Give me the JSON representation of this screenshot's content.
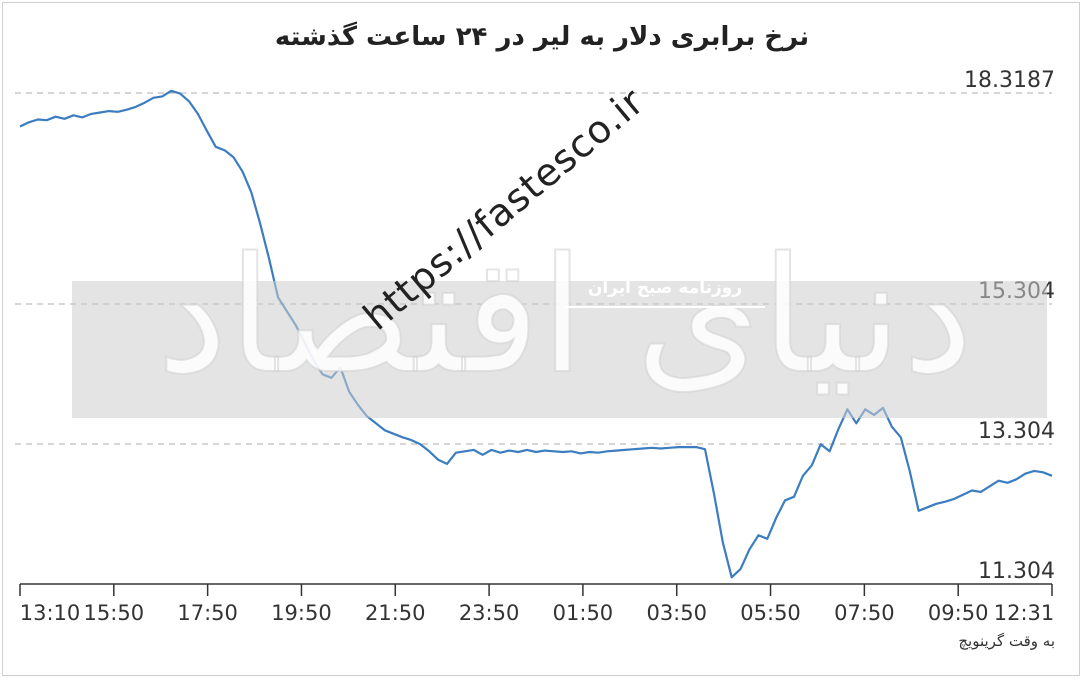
{
  "chart_data": {
    "type": "line",
    "title": "نرخ برابری دلار به لیر در ۲۴ ساعت گذشته",
    "xlabel": "به وقت گرینویچ",
    "ylabel": "",
    "x_ticks": [
      "13:10",
      "15:50",
      "17:50",
      "19:50",
      "21:50",
      "23:50",
      "01:50",
      "03:50",
      "05:50",
      "07:50",
      "09:50",
      "12:31"
    ],
    "y_ticks": [
      11.304,
      13.304,
      15.304,
      18.3187
    ],
    "y_tick_labels": [
      "11.304",
      "13.304",
      "15.304",
      "18.3187"
    ],
    "ylim": [
      11.304,
      18.3187
    ],
    "grid": "dashed horizontal lines at y ticks",
    "series": [
      {
        "color": "#3b7dc0",
        "points": [
          [
            0,
            17.84
          ],
          [
            1,
            17.9
          ],
          [
            2,
            17.94
          ],
          [
            3,
            17.93
          ],
          [
            4,
            17.98
          ],
          [
            5,
            17.95
          ],
          [
            6,
            18.0
          ],
          [
            7,
            17.97
          ],
          [
            8,
            18.02
          ],
          [
            9,
            18.04
          ],
          [
            10,
            18.06
          ],
          [
            11,
            18.05
          ],
          [
            12,
            18.08
          ],
          [
            13,
            18.12
          ],
          [
            14,
            18.18
          ],
          [
            15,
            18.25
          ],
          [
            16,
            18.27
          ],
          [
            17,
            18.35
          ],
          [
            18,
            18.31
          ],
          [
            19,
            18.2
          ],
          [
            20,
            18.02
          ],
          [
            21,
            17.78
          ],
          [
            22,
            17.55
          ],
          [
            23,
            17.5
          ],
          [
            24,
            17.4
          ],
          [
            25,
            17.2
          ],
          [
            26,
            16.9
          ],
          [
            27,
            16.45
          ],
          [
            28,
            15.95
          ],
          [
            29,
            15.4
          ],
          [
            30,
            15.2
          ],
          [
            31,
            15.0
          ],
          [
            32,
            14.75
          ],
          [
            33,
            14.5
          ],
          [
            34,
            14.3
          ],
          [
            35,
            14.25
          ],
          [
            36,
            14.4
          ],
          [
            37,
            14.05
          ],
          [
            38,
            13.86
          ],
          [
            39,
            13.7
          ],
          [
            40,
            13.6
          ],
          [
            41,
            13.5
          ],
          [
            42,
            13.45
          ],
          [
            43,
            13.4
          ],
          [
            44,
            13.36
          ],
          [
            45,
            13.3
          ],
          [
            46,
            13.2
          ],
          [
            47,
            13.08
          ],
          [
            48,
            13.02
          ],
          [
            49,
            13.18
          ],
          [
            50,
            13.2
          ],
          [
            51,
            13.22
          ],
          [
            52,
            13.15
          ],
          [
            53,
            13.22
          ],
          [
            54,
            13.18
          ],
          [
            55,
            13.21
          ],
          [
            56,
            13.19
          ],
          [
            57,
            13.22
          ],
          [
            58,
            13.19
          ],
          [
            59,
            13.21
          ],
          [
            60,
            13.2
          ],
          [
            61,
            13.19
          ],
          [
            62,
            13.2
          ],
          [
            63,
            13.17
          ],
          [
            64,
            13.19
          ],
          [
            65,
            13.18
          ],
          [
            66,
            13.2
          ],
          [
            67,
            13.21
          ],
          [
            68,
            13.22
          ],
          [
            69,
            13.23
          ],
          [
            70,
            13.24
          ],
          [
            71,
            13.25
          ],
          [
            72,
            13.24
          ],
          [
            73,
            13.25
          ],
          [
            74,
            13.26
          ],
          [
            75,
            13.26
          ],
          [
            76,
            13.26
          ],
          [
            77,
            13.23
          ],
          [
            78,
            12.6
          ],
          [
            79,
            11.9
          ],
          [
            80,
            11.4
          ],
          [
            81,
            11.52
          ],
          [
            82,
            11.8
          ],
          [
            83,
            12.0
          ],
          [
            84,
            11.95
          ],
          [
            85,
            12.25
          ],
          [
            86,
            12.5
          ],
          [
            87,
            12.55
          ],
          [
            88,
            12.85
          ],
          [
            89,
            13.0
          ],
          [
            90,
            13.3
          ],
          [
            91,
            13.2
          ],
          [
            92,
            13.52
          ],
          [
            93,
            13.8
          ],
          [
            94,
            13.6
          ],
          [
            95,
            13.8
          ],
          [
            96,
            13.72
          ],
          [
            97,
            13.82
          ],
          [
            98,
            13.55
          ],
          [
            99,
            13.4
          ],
          [
            100,
            12.92
          ],
          [
            101,
            12.35
          ],
          [
            102,
            12.4
          ],
          [
            103,
            12.45
          ],
          [
            104,
            12.48
          ],
          [
            105,
            12.52
          ],
          [
            106,
            12.58
          ],
          [
            107,
            12.64
          ],
          [
            108,
            12.62
          ],
          [
            109,
            12.7
          ],
          [
            110,
            12.78
          ],
          [
            111,
            12.75
          ],
          [
            112,
            12.8
          ],
          [
            113,
            12.88
          ],
          [
            114,
            12.92
          ],
          [
            115,
            12.9
          ],
          [
            116,
            12.85
          ]
        ]
      }
    ],
    "x_range": [
      0,
      116
    ]
  },
  "watermark": {
    "brand": "دنیای اقتصاد",
    "subtitle": "روزنامه صبح ایران",
    "url": "https://fastesco.ir"
  }
}
